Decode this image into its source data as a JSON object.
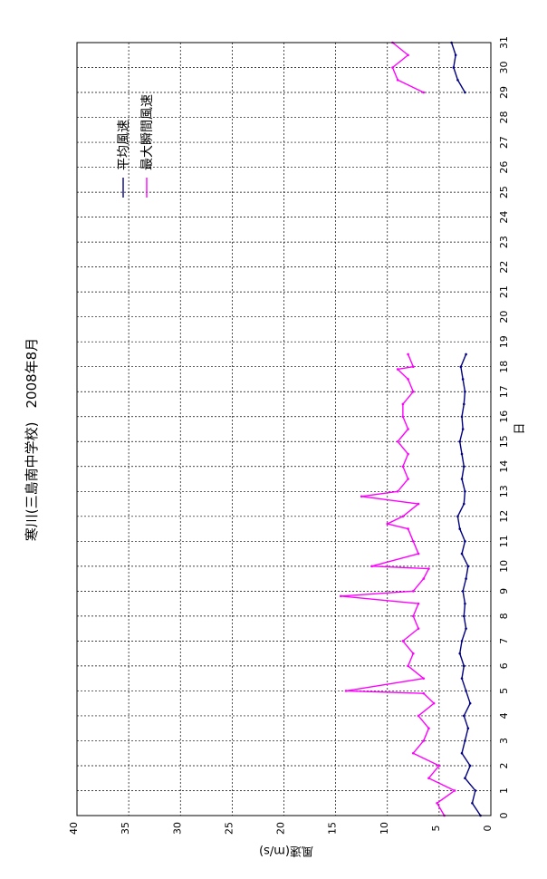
{
  "chart_data": {
    "type": "line",
    "title": "寒川(三島南中学校)　2008年8月",
    "xlabel": "日",
    "ylabel": "風速(m/s)",
    "xlim": [
      0,
      31
    ],
    "ylim": [
      0,
      40
    ],
    "x_ticks": [
      0,
      1,
      2,
      3,
      4,
      5,
      6,
      7,
      8,
      9,
      10,
      11,
      12,
      13,
      14,
      15,
      16,
      17,
      18,
      19,
      20,
      21,
      22,
      23,
      24,
      25,
      26,
      27,
      28,
      29,
      30,
      31
    ],
    "y_ticks": [
      0,
      5,
      10,
      15,
      20,
      25,
      30,
      35,
      40
    ],
    "grid": true,
    "legend_position": "top-right",
    "series": [
      {
        "name": "平均風速",
        "color": "#000080",
        "x": [
          0.0,
          0.5,
          1.0,
          1.5,
          2.0,
          2.5,
          3.0,
          3.5,
          4.0,
          4.5,
          5.0,
          5.5,
          6.0,
          6.5,
          7.0,
          7.5,
          8.0,
          8.5,
          9.0,
          9.5,
          10.0,
          10.5,
          11.0,
          11.5,
          12.0,
          12.5,
          13.0,
          13.5,
          14.0,
          14.5,
          15.0,
          15.5,
          16.0,
          16.5,
          17.0,
          17.5,
          18.0,
          18.5,
          29.0,
          29.5,
          30.0,
          30.5,
          31.0
        ],
        "y": [
          1.0,
          1.8,
          1.5,
          2.5,
          2.0,
          2.8,
          2.5,
          2.2,
          2.6,
          2.0,
          2.4,
          2.8,
          2.6,
          3.0,
          2.8,
          2.4,
          2.6,
          2.5,
          2.7,
          2.4,
          2.2,
          2.8,
          2.5,
          3.0,
          3.2,
          2.6,
          2.5,
          2.8,
          2.6,
          2.8,
          3.0,
          2.7,
          2.8,
          2.6,
          2.5,
          2.7,
          2.9,
          2.4,
          2.5,
          3.2,
          3.6,
          3.4,
          3.8
        ]
      },
      {
        "name": "最大瞬間風速",
        "color": "#ff00ff",
        "x": [
          0.0,
          0.5,
          1.0,
          1.5,
          2.0,
          2.5,
          3.0,
          3.5,
          4.0,
          4.5,
          4.9,
          5.0,
          5.5,
          6.0,
          6.5,
          7.0,
          7.5,
          8.0,
          8.5,
          8.8,
          9.0,
          9.5,
          9.9,
          10.0,
          10.5,
          11.0,
          11.5,
          11.7,
          12.0,
          12.5,
          12.8,
          13.0,
          13.5,
          14.0,
          14.5,
          15.0,
          15.5,
          16.0,
          16.5,
          17.0,
          17.5,
          17.9,
          18.0,
          18.5,
          29.0,
          29.5,
          30.0,
          30.5,
          31.0
        ],
        "y": [
          4.5,
          5.2,
          3.5,
          6.0,
          5.0,
          7.5,
          6.5,
          6.0,
          7.0,
          5.5,
          6.5,
          14.0,
          6.5,
          8.0,
          7.5,
          8.5,
          7.0,
          7.5,
          7.0,
          14.5,
          7.5,
          6.5,
          6.0,
          11.5,
          7.0,
          7.5,
          8.0,
          10.0,
          8.5,
          7.0,
          12.5,
          9.0,
          8.0,
          8.5,
          8.0,
          9.0,
          8.0,
          8.5,
          8.5,
          7.5,
          8.0,
          9.0,
          7.5,
          8.0,
          6.5,
          9.0,
          9.5,
          8.0,
          9.5
        ]
      }
    ]
  }
}
